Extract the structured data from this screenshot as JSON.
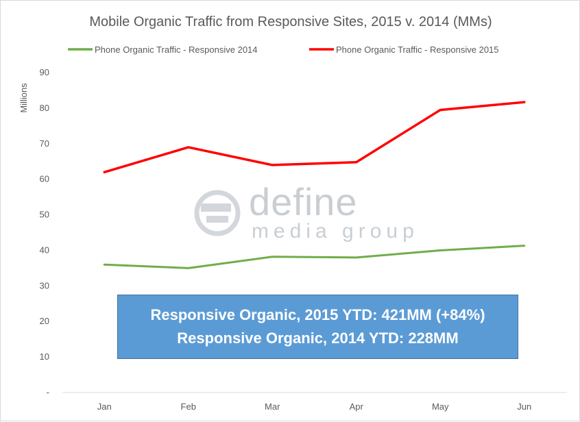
{
  "chart_data": {
    "type": "line",
    "title": "Mobile Organic Traffic from Responsive Sites, 2015 v. 2014 (MMs)",
    "ylabel": "Millions",
    "xlabel": "",
    "categories": [
      "Jan",
      "Feb",
      "Mar",
      "Apr",
      "May",
      "Jun"
    ],
    "y_ticks": [
      "-",
      "10",
      "20",
      "30",
      "40",
      "50",
      "60",
      "70",
      "80",
      "90"
    ],
    "ylim": [
      0,
      90
    ],
    "grid": false,
    "legend_position": "top",
    "series": [
      {
        "name": "Phone Organic Traffic - Responsive 2014",
        "color": "#70ad47",
        "values": [
          36,
          35,
          38.2,
          38,
          40,
          41.3
        ]
      },
      {
        "name": "Phone Organic Traffic - Responsive 2015",
        "color": "#ff0000",
        "values": [
          62,
          69,
          64,
          64.8,
          79.5,
          81.7
        ]
      }
    ],
    "annotations": [
      "Responsive Organic, 2015 YTD: 421MM (+84%)",
      "Responsive Organic, 2014 YTD: 228MM"
    ]
  },
  "watermark": {
    "line1": "define",
    "line2": "media group"
  }
}
